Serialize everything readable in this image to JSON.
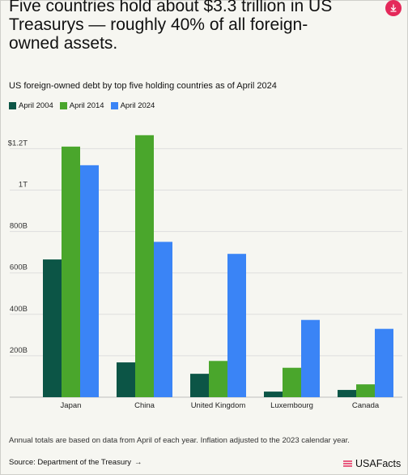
{
  "headline": "Five countries hold about $3.3 trillion in US Treasurys — roughly 40% of all foreign-owned assets.",
  "download_icon": "download-icon",
  "subtitle": "US foreign-owned debt by top five holding countries as of April 2024",
  "footnote": "Annual totals are based on data from April of each year. Inflation adjusted to the 2023 calendar year.",
  "source": {
    "label": "Source: Department of the Treasury",
    "arrow": "→"
  },
  "brand": {
    "name": "USAFacts"
  },
  "colors": {
    "april_2004": "#0c5546",
    "april_2014": "#4aa62c",
    "april_2024": "#3a84f6",
    "accent": "#e4295a"
  },
  "chart_data": {
    "type": "bar",
    "categories": [
      "Japan",
      "China",
      "United Kingdom",
      "Luxembourg",
      "Canada"
    ],
    "series": [
      {
        "name": "April 2004",
        "values": [
          665,
          168,
          113,
          27,
          35
        ]
      },
      {
        "name": "April 2014",
        "values": [
          1210,
          1265,
          175,
          142,
          62
        ]
      },
      {
        "name": "April 2024",
        "values": [
          1120,
          750,
          692,
          373,
          330
        ]
      }
    ],
    "units": "billions of US dollars",
    "yticks": [
      {
        "value": 200,
        "label": "200B"
      },
      {
        "value": 400,
        "label": "400B"
      },
      {
        "value": 600,
        "label": "600B"
      },
      {
        "value": 800,
        "label": "800B"
      },
      {
        "value": 1000,
        "label": "1T"
      },
      {
        "value": 1200,
        "label": "$1.2T"
      }
    ],
    "ylim": [
      0,
      1300
    ],
    "grid": true,
    "legend": "top-left"
  }
}
